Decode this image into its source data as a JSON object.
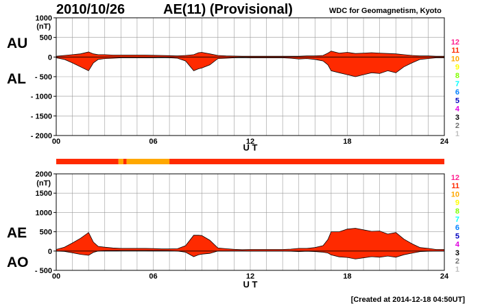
{
  "header": {
    "date": "2010/10/26",
    "index_title": "AE(11) (Provisional)",
    "source": "WDC for Geomagnetism, Kyoto"
  },
  "footer": {
    "created": "[Created at 2014-12-18 04:50UT]"
  },
  "colors": {
    "fill_main": "#ff2a00",
    "fill_orange": "#ffa800",
    "grid": "#999999",
    "strip_red": "#ff2a00",
    "strip_orange": "#ffa800"
  },
  "legend": [
    {
      "label": "12",
      "color": "#ff1f8f"
    },
    {
      "label": "11",
      "color": "#ff2a00"
    },
    {
      "label": "10",
      "color": "#ffa800"
    },
    {
      "label": "9",
      "color": "#ffff00"
    },
    {
      "label": "8",
      "color": "#80ff00"
    },
    {
      "label": "7",
      "color": "#00ffff"
    },
    {
      "label": "6",
      "color": "#0080ff"
    },
    {
      "label": "5",
      "color": "#0000c0"
    },
    {
      "label": "4",
      "color": "#e000e0"
    },
    {
      "label": "3",
      "color": "#000000"
    },
    {
      "label": "2",
      "color": "#707070"
    },
    {
      "label": "1",
      "color": "#c0c0c0"
    }
  ],
  "station_strip": [
    {
      "start": 0.0,
      "end": 3.85,
      "color": "#ff2a00"
    },
    {
      "start": 3.85,
      "end": 4.15,
      "color": "#ffa800"
    },
    {
      "start": 4.15,
      "end": 4.35,
      "color": "#ff2a00"
    },
    {
      "start": 4.35,
      "end": 7.0,
      "color": "#ffa800"
    },
    {
      "start": 7.0,
      "end": 24.0,
      "color": "#ff2a00"
    }
  ],
  "chart_data": [
    {
      "type": "area",
      "panel": "AU/AL",
      "upper_label": "AU",
      "lower_label": "AL",
      "xlabel": "U T",
      "ylabel_unit": "(nT)",
      "xlim": [
        0,
        24
      ],
      "ylim": [
        -2000,
        1000
      ],
      "x_ticks": [
        "00",
        "06",
        "12",
        "18",
        "24"
      ],
      "y_ticks": [
        "1000",
        "500",
        "0",
        "- 500",
        "- 1000",
        "- 1500",
        "- 2000"
      ],
      "x": [
        0,
        0.5,
        1,
        1.5,
        2,
        2.3,
        2.6,
        3,
        3.5,
        4,
        4.5,
        5,
        5.5,
        6,
        6.5,
        7,
        7.5,
        8,
        8.5,
        8.8,
        9,
        9.5,
        10,
        10.5,
        11,
        11.5,
        12,
        12.5,
        13,
        13.5,
        14,
        14.5,
        15,
        15.5,
        16,
        16.5,
        16.8,
        17,
        17.5,
        18,
        18.5,
        19,
        19.5,
        20,
        20.5,
        21,
        21.5,
        22,
        22.5,
        23,
        23.5,
        24
      ],
      "series": [
        {
          "name": "AU",
          "values": [
            20,
            40,
            60,
            80,
            130,
            80,
            60,
            60,
            50,
            50,
            50,
            50,
            50,
            45,
            40,
            35,
            30,
            40,
            60,
            110,
            120,
            80,
            40,
            30,
            25,
            20,
            20,
            20,
            20,
            20,
            20,
            20,
            20,
            30,
            30,
            40,
            100,
            150,
            100,
            120,
            90,
            100,
            110,
            100,
            90,
            80,
            60,
            40,
            30,
            30,
            20,
            20
          ]
        },
        {
          "name": "AL",
          "values": [
            -20,
            -60,
            -150,
            -250,
            -350,
            -150,
            -60,
            -40,
            -30,
            -20,
            -20,
            -20,
            -20,
            -20,
            -15,
            -20,
            -30,
            -100,
            -350,
            -300,
            -280,
            -200,
            -40,
            -30,
            -20,
            -15,
            -20,
            -20,
            -20,
            -20,
            -20,
            -30,
            -50,
            -40,
            -60,
            -100,
            -200,
            -350,
            -400,
            -450,
            -500,
            -450,
            -400,
            -420,
            -350,
            -400,
            -250,
            -150,
            -60,
            -40,
            -20,
            -20
          ]
        }
      ]
    },
    {
      "type": "area",
      "panel": "AE/AO",
      "upper_label": "AE",
      "lower_label": "AO",
      "xlabel": "U T",
      "ylabel_unit": "(nT)",
      "xlim": [
        0,
        24
      ],
      "ylim": [
        -500,
        2000
      ],
      "x_ticks": [
        "00",
        "06",
        "12",
        "18",
        "24"
      ],
      "y_ticks": [
        "2000",
        "1500",
        "1000",
        "500",
        "0",
        "- 500"
      ],
      "x": [
        0,
        0.5,
        1,
        1.5,
        2,
        2.3,
        2.6,
        3,
        3.5,
        4,
        4.5,
        5,
        5.5,
        6,
        6.5,
        7,
        7.5,
        8,
        8.5,
        8.8,
        9,
        9.5,
        10,
        10.5,
        11,
        11.5,
        12,
        12.5,
        13,
        13.5,
        14,
        14.5,
        15,
        15.5,
        16,
        16.5,
        16.8,
        17,
        17.5,
        18,
        18.5,
        19,
        19.5,
        20,
        20.5,
        21,
        21.5,
        22,
        22.5,
        23,
        23.5,
        24
      ],
      "series": [
        {
          "name": "AE",
          "values": [
            40,
            100,
            210,
            330,
            480,
            230,
            120,
            100,
            80,
            70,
            70,
            70,
            70,
            65,
            55,
            55,
            60,
            140,
            410,
            410,
            400,
            280,
            80,
            60,
            45,
            35,
            40,
            40,
            40,
            40,
            40,
            50,
            70,
            70,
            90,
            140,
            300,
            500,
            500,
            570,
            590,
            550,
            510,
            520,
            440,
            480,
            310,
            190,
            90,
            70,
            40,
            40
          ]
        },
        {
          "name": "AO",
          "values": [
            0,
            -10,
            -45,
            -85,
            -110,
            -35,
            0,
            10,
            10,
            15,
            15,
            15,
            15,
            12,
            12,
            8,
            0,
            -30,
            -145,
            -95,
            -80,
            -60,
            0,
            0,
            2,
            2,
            0,
            0,
            0,
            0,
            0,
            -5,
            -15,
            -5,
            -15,
            -30,
            -50,
            -100,
            -150,
            -165,
            -205,
            -175,
            -145,
            -160,
            -130,
            -160,
            -95,
            -55,
            -15,
            -5,
            0,
            0
          ]
        }
      ]
    }
  ]
}
